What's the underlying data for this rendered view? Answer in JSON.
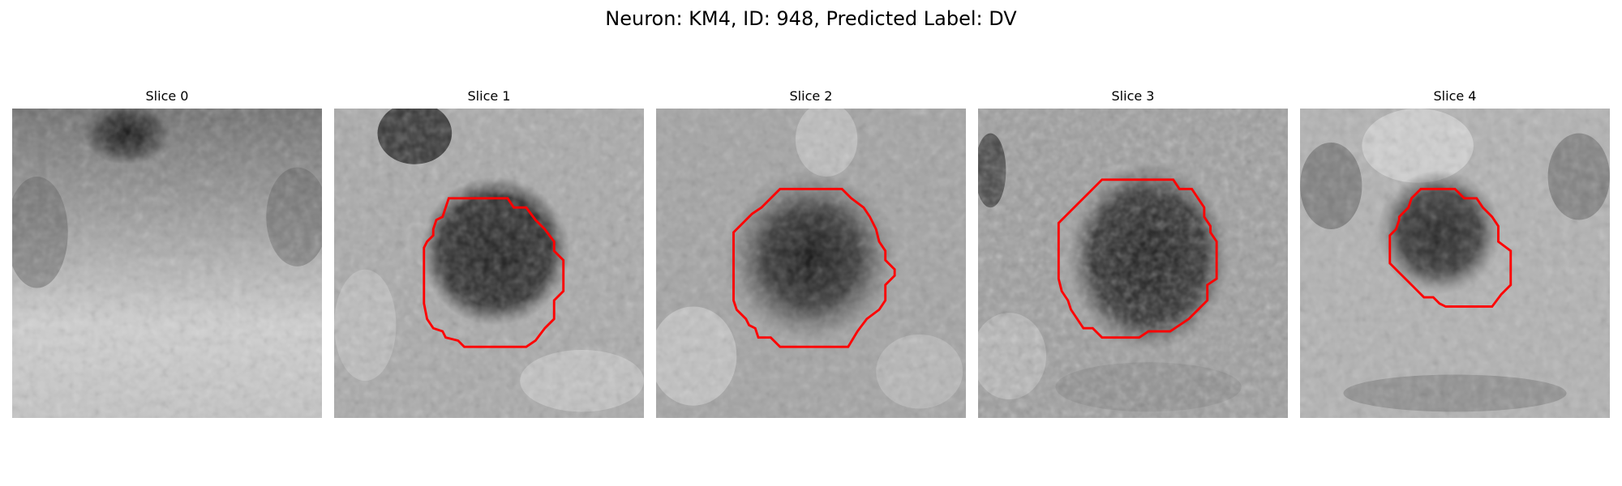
{
  "figure": {
    "title": "Neuron: KM4, ID: 948, Predicted Label: DV"
  },
  "panels": [
    {
      "title": "Slice 0"
    },
    {
      "title": "Slice 1"
    },
    {
      "title": "Slice 2"
    },
    {
      "title": "Slice 3"
    },
    {
      "title": "Slice 4"
    }
  ],
  "colors": {
    "contour": "#ff0000",
    "background": "#ffffff"
  }
}
